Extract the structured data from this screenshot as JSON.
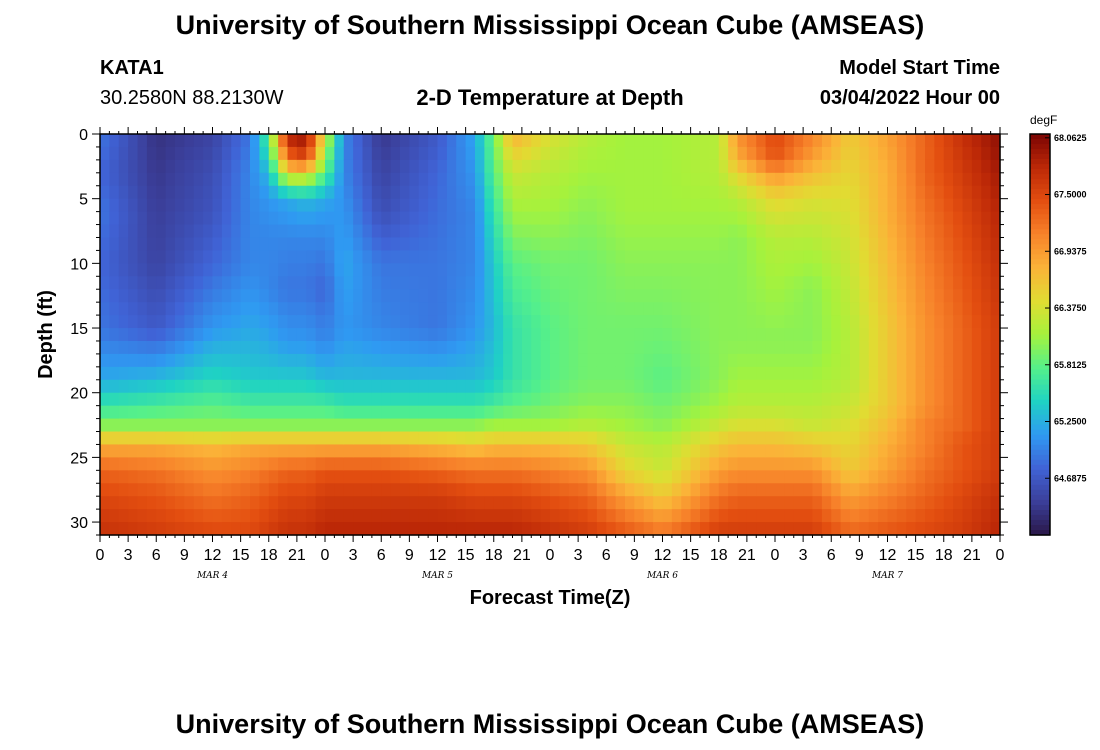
{
  "header": {
    "title": "University of Southern Mississippi Ocean Cube (AMSEAS)",
    "station": "KATA1",
    "coords": "30.2580N  88.2130W",
    "subtitle": "2-D Temperature at Depth",
    "start_label": "Model Start Time",
    "start_value": "03/04/2022 Hour 00"
  },
  "footer": {
    "title": "University of Southern Mississippi Ocean Cube (AMSEAS)"
  },
  "chart_data": {
    "type": "heatmap",
    "title": "2-D Temperature at Depth",
    "xlabel": "Forecast Time(Z)",
    "ylabel": "Depth (ft)",
    "x_tick_labels": [
      "0",
      "3",
      "6",
      "9",
      "12",
      "15",
      "18",
      "21",
      "0",
      "3",
      "6",
      "9",
      "12",
      "15",
      "18",
      "21",
      "0",
      "3",
      "6",
      "9",
      "12",
      "15",
      "18",
      "21",
      "0",
      "3",
      "6",
      "9",
      "12",
      "15",
      "18",
      "21",
      "0"
    ],
    "x_range_hours": [
      0,
      96
    ],
    "day_labels": [
      {
        "label": "MAR 4",
        "hour": 12
      },
      {
        "label": "MAR 5",
        "hour": 36
      },
      {
        "label": "MAR 6",
        "hour": 60
      },
      {
        "label": "MAR 7",
        "hour": 84
      }
    ],
    "y_ticks": [
      0,
      5,
      10,
      15,
      20,
      25,
      30
    ],
    "y_range": [
      0,
      31
    ],
    "y_inverted": true,
    "colorbar": {
      "unit": "degF",
      "tick_labels": [
        "68.0625",
        "67.5000",
        "66.9375",
        "66.3750",
        "65.8125",
        "65.2500",
        "64.6875"
      ],
      "range": [
        64.125,
        68.1
      ],
      "colors": [
        "#2a1748",
        "#3b3f9a",
        "#4063d6",
        "#2f9af2",
        "#1fd3c3",
        "#55f08a",
        "#a6f23c",
        "#e1dc32",
        "#fbb338",
        "#f7822a",
        "#e34e10",
        "#bc2807",
        "#7a0403"
      ]
    },
    "field_points": [
      {
        "hour": 0,
        "depth": [
          0,
          3,
          6,
          10,
          15,
          19,
          21,
          22.5,
          24,
          26,
          28,
          31
        ],
        "temp": [
          64.9,
          64.8,
          64.9,
          64.8,
          64.9,
          65.2,
          65.6,
          66.0,
          66.8,
          67.3,
          67.5,
          67.7
        ]
      },
      {
        "hour": 6,
        "depth": [
          0,
          3,
          6,
          10,
          15,
          19,
          21,
          22.5,
          24,
          26,
          28,
          31
        ],
        "temp": [
          64.35,
          64.4,
          64.45,
          64.5,
          64.7,
          65.3,
          65.7,
          66.0,
          66.8,
          67.2,
          67.4,
          67.6
        ]
      },
      {
        "hour": 12,
        "depth": [
          0,
          3,
          6,
          10,
          15,
          19,
          21,
          22.5,
          24,
          26,
          28,
          31
        ],
        "temp": [
          64.5,
          64.6,
          64.65,
          64.8,
          65.1,
          65.5,
          65.8,
          66.0,
          66.7,
          67.0,
          67.2,
          67.5
        ]
      },
      {
        "hour": 16,
        "depth": [
          0,
          3,
          6,
          10,
          15,
          19,
          21,
          22.5,
          24,
          26,
          28,
          31
        ],
        "temp": [
          64.9,
          65.0,
          65.0,
          65.0,
          65.2,
          65.4,
          65.7,
          66.0,
          66.8,
          67.1,
          67.3,
          67.5
        ]
      },
      {
        "hour": 18,
        "depth": [
          0,
          2,
          3,
          5,
          8,
          12,
          16,
          19,
          21,
          22.5,
          24,
          26,
          28,
          31
        ],
        "temp": [
          65.8,
          65.5,
          65.3,
          65.1,
          65.0,
          65.0,
          65.2,
          65.4,
          65.7,
          66.0,
          66.8,
          67.2,
          67.4,
          67.6
        ]
      },
      {
        "hour": 20,
        "depth": [
          0,
          2,
          3,
          5,
          8,
          12,
          16,
          19,
          21,
          22.5,
          24,
          26,
          28,
          31
        ],
        "temp": [
          67.9,
          67.2,
          66.5,
          65.2,
          65.0,
          64.9,
          65.1,
          65.4,
          65.7,
          66.0,
          66.8,
          67.3,
          67.5,
          67.7
        ]
      },
      {
        "hour": 22,
        "depth": [
          0,
          2,
          3,
          5,
          8,
          12,
          16,
          19,
          21,
          22.5,
          24,
          26,
          28,
          31
        ],
        "temp": [
          68.0,
          67.5,
          66.5,
          65.3,
          65.0,
          64.9,
          65.1,
          65.4,
          65.7,
          66.0,
          66.8,
          67.3,
          67.5,
          67.7
        ]
      },
      {
        "hour": 24,
        "depth": [
          0,
          2,
          3,
          5,
          8,
          12,
          16,
          19,
          21,
          22.5,
          24,
          26,
          28,
          31
        ],
        "temp": [
          66.4,
          66.0,
          65.8,
          65.2,
          65.0,
          64.8,
          65.0,
          65.3,
          65.7,
          66.0,
          66.8,
          67.4,
          67.6,
          67.8
        ]
      },
      {
        "hour": 26,
        "depth": [
          0,
          3,
          6,
          10,
          15,
          19,
          21,
          22.5,
          24,
          26,
          28,
          31
        ],
        "temp": [
          65.0,
          65.0,
          65.1,
          65.2,
          65.1,
          65.3,
          65.6,
          66.0,
          66.8,
          67.4,
          67.6,
          67.8
        ]
      },
      {
        "hour": 30,
        "depth": [
          0,
          3,
          6,
          10,
          15,
          19,
          21,
          22.5,
          24,
          26,
          28,
          31
        ],
        "temp": [
          64.4,
          64.5,
          64.6,
          64.9,
          65.0,
          65.3,
          65.6,
          66.0,
          66.8,
          67.4,
          67.6,
          67.8
        ]
      },
      {
        "hour": 36,
        "depth": [
          0,
          3,
          6,
          10,
          15,
          19,
          21,
          22.5,
          24,
          26,
          28,
          31
        ],
        "temp": [
          64.7,
          64.8,
          64.85,
          64.9,
          64.9,
          65.3,
          65.6,
          66.0,
          66.7,
          67.3,
          67.6,
          67.8
        ]
      },
      {
        "hour": 40,
        "depth": [
          0,
          3,
          6,
          10,
          15,
          19,
          21,
          22.5,
          24,
          26,
          28,
          31
        ],
        "temp": [
          65.2,
          65.1,
          65.0,
          65.0,
          65.1,
          65.3,
          65.6,
          66.0,
          66.6,
          67.2,
          67.5,
          67.8
        ]
      },
      {
        "hour": 42,
        "depth": [
          0,
          3,
          6,
          10,
          15,
          19,
          21,
          22.5,
          24,
          26,
          28,
          31
        ],
        "temp": [
          65.9,
          65.8,
          65.6,
          65.4,
          65.3,
          65.4,
          65.7,
          66.1,
          66.7,
          67.2,
          67.5,
          67.8
        ]
      },
      {
        "hour": 44,
        "depth": [
          0,
          3,
          6,
          10,
          15,
          19,
          21,
          22.5,
          24,
          26,
          28,
          31
        ],
        "temp": [
          66.8,
          66.3,
          66.1,
          65.8,
          65.6,
          65.6,
          65.8,
          66.1,
          66.7,
          67.2,
          67.5,
          67.8
        ]
      },
      {
        "hour": 48,
        "depth": [
          0,
          3,
          6,
          10,
          15,
          19,
          21,
          22.5,
          24,
          26,
          28,
          31
        ],
        "temp": [
          66.4,
          66.2,
          66.1,
          65.9,
          65.8,
          65.8,
          65.9,
          66.1,
          66.7,
          67.1,
          67.4,
          67.7
        ]
      },
      {
        "hour": 52,
        "depth": [
          0,
          3,
          6,
          10,
          15,
          19,
          21,
          22.5,
          24,
          26,
          28,
          31
        ],
        "temp": [
          66.2,
          66.1,
          66.0,
          65.9,
          65.9,
          65.9,
          66.0,
          66.2,
          66.6,
          67.0,
          67.3,
          67.6
        ]
      },
      {
        "hour": 56,
        "depth": [
          0,
          3,
          6,
          10,
          15,
          19,
          21,
          22.5,
          24,
          26,
          28,
          31
        ],
        "temp": [
          66.1,
          66.1,
          66.1,
          66.0,
          65.9,
          65.9,
          66.0,
          66.1,
          66.3,
          66.5,
          66.9,
          67.4
        ]
      },
      {
        "hour": 60,
        "depth": [
          0,
          3,
          6,
          10,
          15,
          19,
          21,
          22.5,
          24,
          26,
          28,
          31
        ],
        "temp": [
          66.1,
          66.1,
          66.1,
          66.0,
          65.9,
          65.8,
          65.9,
          66.0,
          66.2,
          66.3,
          66.6,
          67.2
        ]
      },
      {
        "hour": 66,
        "depth": [
          0,
          3,
          6,
          10,
          15,
          19,
          21,
          22.5,
          24,
          26,
          28,
          31
        ],
        "temp": [
          66.2,
          66.2,
          66.1,
          66.0,
          66.0,
          66.0,
          66.1,
          66.3,
          66.6,
          66.9,
          67.2,
          67.6
        ]
      },
      {
        "hour": 68,
        "depth": [
          0,
          2,
          3,
          5,
          8,
          12,
          16,
          19,
          21,
          22.5,
          24,
          26,
          28,
          31
        ],
        "temp": [
          67.0,
          66.8,
          66.5,
          66.2,
          66.0,
          66.0,
          66.0,
          66.1,
          66.2,
          66.4,
          66.7,
          67.0,
          67.3,
          67.6
        ]
      },
      {
        "hour": 72,
        "depth": [
          0,
          2,
          3,
          5,
          8,
          12,
          16,
          19,
          21,
          22.5,
          24,
          26,
          28,
          31
        ],
        "temp": [
          67.5,
          67.4,
          67.0,
          66.5,
          66.2,
          66.1,
          66.0,
          66.1,
          66.2,
          66.4,
          66.7,
          67.0,
          67.3,
          67.6
        ]
      },
      {
        "hour": 76,
        "depth": [
          0,
          2,
          3,
          5,
          8,
          12,
          16,
          19,
          21,
          22.5,
          24,
          26,
          28,
          31
        ],
        "temp": [
          67.1,
          66.9,
          66.7,
          66.4,
          66.2,
          66.0,
          66.0,
          66.1,
          66.2,
          66.3,
          66.6,
          67.0,
          67.3,
          67.6
        ]
      },
      {
        "hour": 80,
        "depth": [
          0,
          3,
          6,
          10,
          15,
          19,
          21,
          22.5,
          24,
          26,
          28,
          31
        ],
        "temp": [
          66.6,
          66.5,
          66.4,
          66.3,
          66.2,
          66.2,
          66.3,
          66.4,
          66.5,
          66.6,
          66.9,
          67.3
        ]
      },
      {
        "hour": 84,
        "depth": [
          0,
          3,
          6,
          10,
          15,
          19,
          21,
          22.5,
          24,
          26,
          28,
          31
        ],
        "temp": [
          66.9,
          66.8,
          66.8,
          66.7,
          66.6,
          66.6,
          66.6,
          66.7,
          66.8,
          66.9,
          67.1,
          67.4
        ]
      },
      {
        "hour": 88,
        "depth": [
          0,
          3,
          6,
          10,
          15,
          19,
          21,
          22.5,
          24,
          26,
          28,
          31
        ],
        "temp": [
          67.3,
          67.3,
          67.2,
          67.1,
          67.0,
          67.0,
          67.0,
          67.1,
          67.1,
          67.2,
          67.3,
          67.5
        ]
      },
      {
        "hour": 92,
        "depth": [
          0,
          3,
          6,
          10,
          15,
          19,
          21,
          22.5,
          24,
          26,
          28,
          31
        ],
        "temp": [
          67.7,
          67.6,
          67.5,
          67.4,
          67.3,
          67.3,
          67.3,
          67.3,
          67.4,
          67.4,
          67.5,
          67.6
        ]
      },
      {
        "hour": 96,
        "depth": [
          0,
          3,
          6,
          10,
          15,
          19,
          21,
          22.5,
          24,
          26,
          28,
          31
        ],
        "temp": [
          68.0,
          67.9,
          67.8,
          67.7,
          67.6,
          67.6,
          67.6,
          67.6,
          67.6,
          67.6,
          67.7,
          67.8
        ]
      }
    ]
  }
}
